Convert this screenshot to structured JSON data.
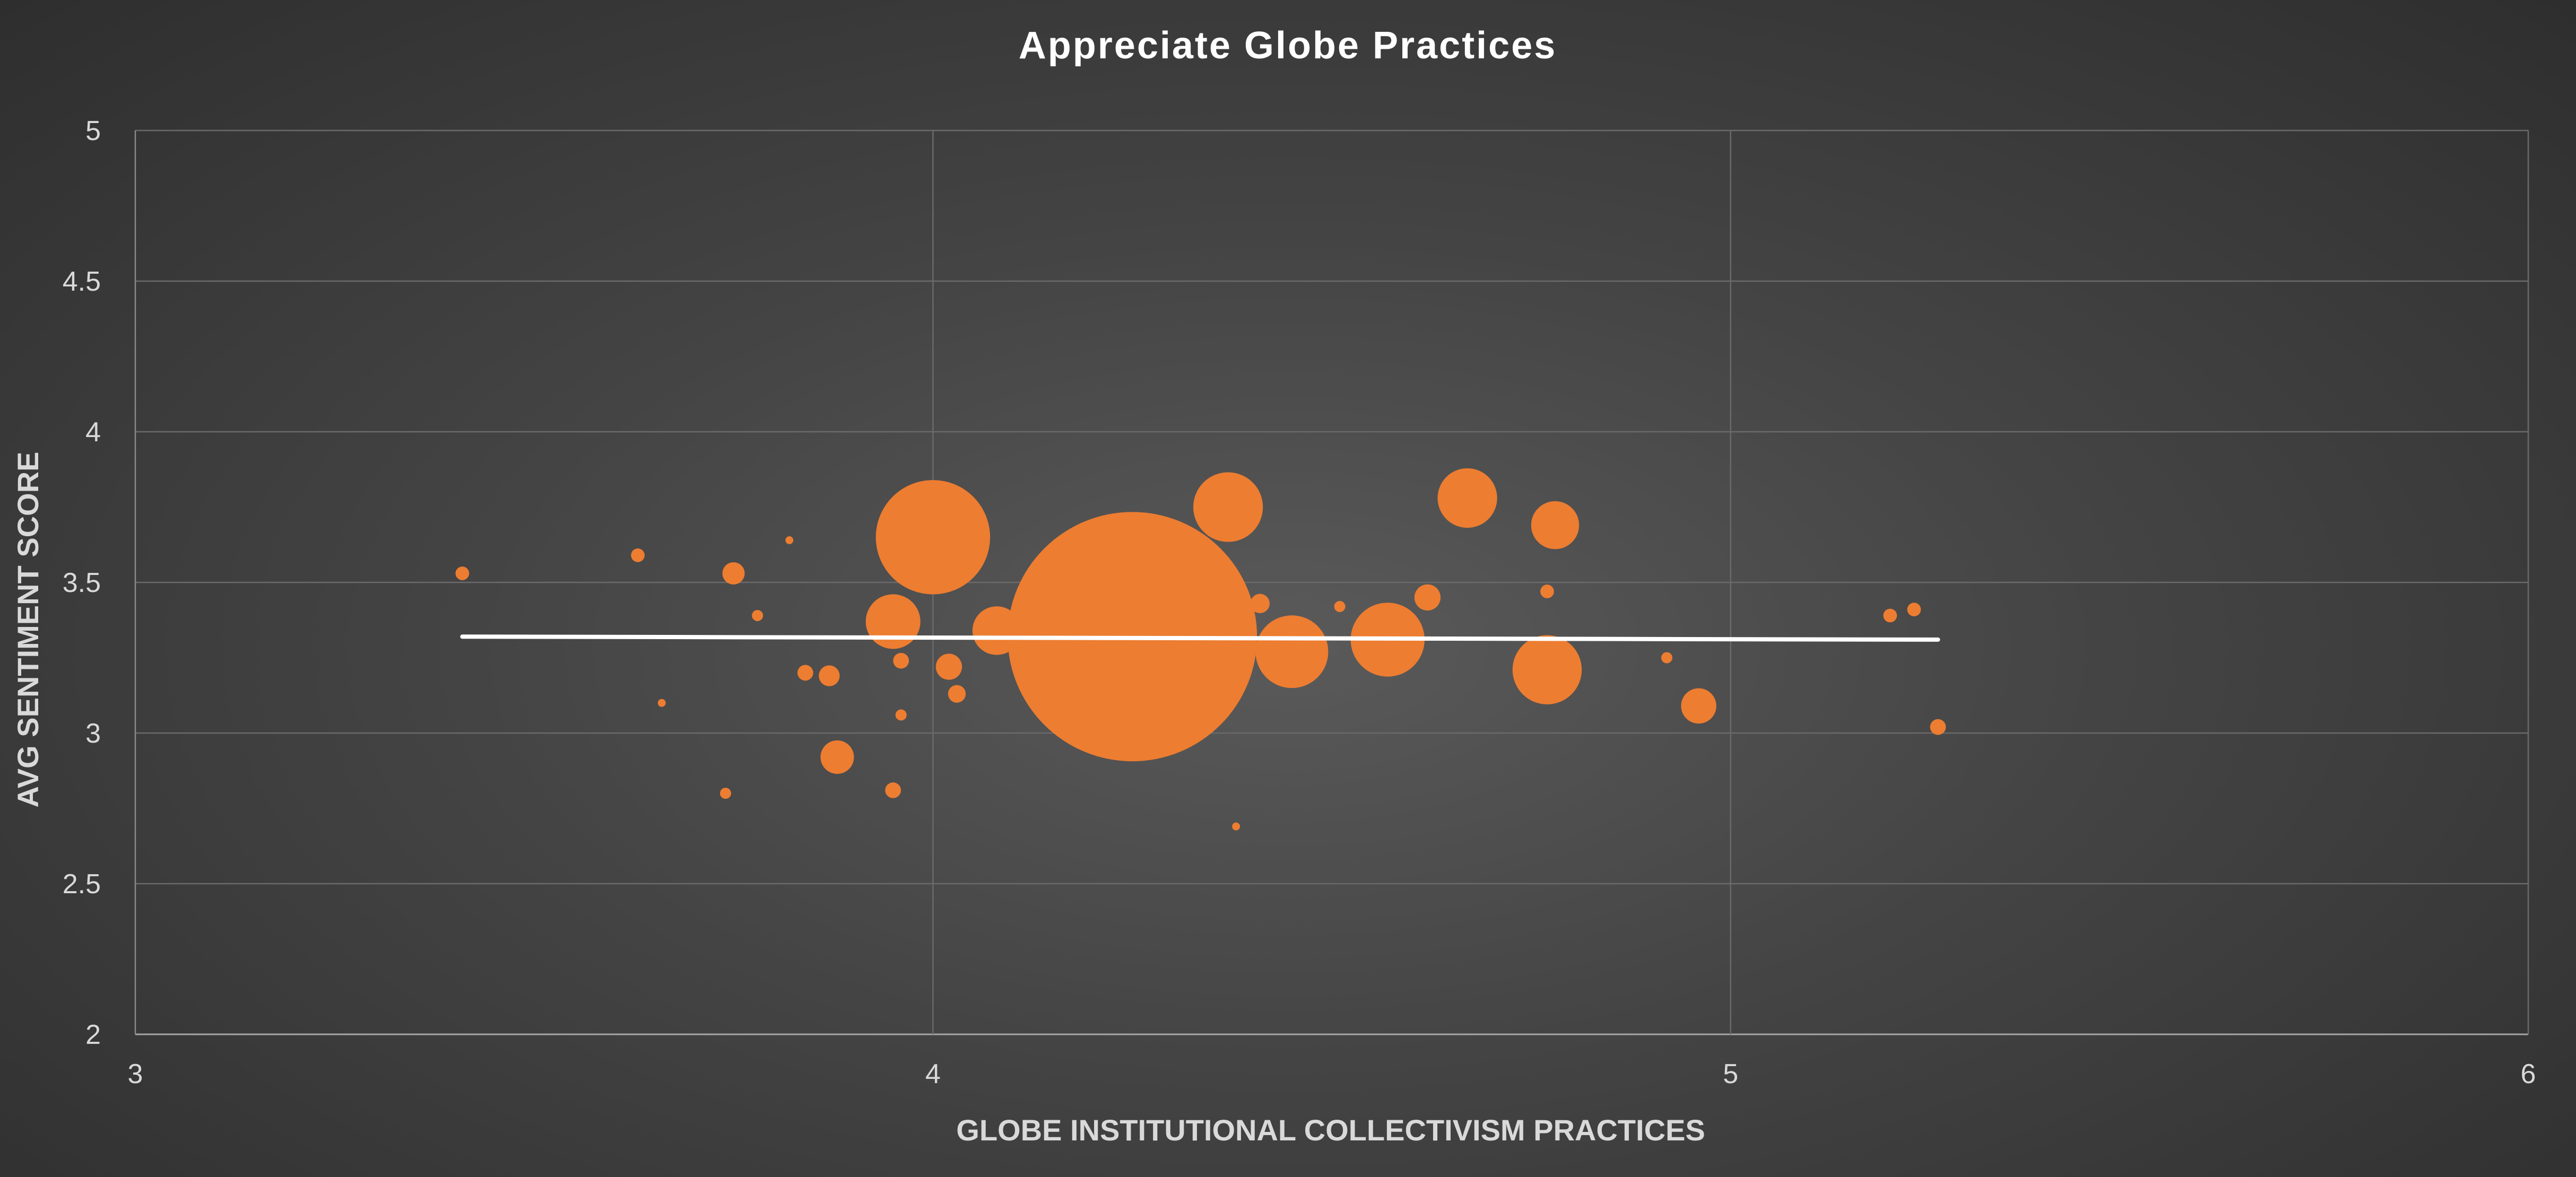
{
  "chart_data": {
    "type": "scatter",
    "subtype": "bubble",
    "title": "Appreciate Globe Practices",
    "xlabel": "GLOBE INSTITUTIONAL COLLECTIVISM PRACTICES",
    "ylabel": "AVG SENTIMENT SCORE",
    "xlim": [
      3,
      6
    ],
    "ylim": [
      2,
      5
    ],
    "xticks": [
      "3",
      "4",
      "5",
      "6"
    ],
    "yticks": [
      "2",
      "2.5",
      "3",
      "3.5",
      "4",
      "4.5",
      "5"
    ],
    "grid": true,
    "bubble_color": "#ED7D31",
    "trendline_color": "#FFFFFF",
    "trendline": {
      "x": [
        3.41,
        5.26
      ],
      "y": [
        3.32,
        3.31
      ]
    },
    "points": [
      {
        "x": 3.41,
        "y": 3.53,
        "size": 3
      },
      {
        "x": 3.63,
        "y": 3.59,
        "size": 3
      },
      {
        "x": 3.66,
        "y": 3.1,
        "size": 1
      },
      {
        "x": 3.74,
        "y": 2.8,
        "size": 2
      },
      {
        "x": 3.75,
        "y": 3.53,
        "size": 8
      },
      {
        "x": 3.78,
        "y": 3.39,
        "size": 2
      },
      {
        "x": 3.82,
        "y": 3.64,
        "size": 1
      },
      {
        "x": 3.84,
        "y": 3.2,
        "size": 4
      },
      {
        "x": 3.87,
        "y": 3.19,
        "size": 7
      },
      {
        "x": 3.88,
        "y": 2.92,
        "size": 18
      },
      {
        "x": 3.95,
        "y": 2.81,
        "size": 4
      },
      {
        "x": 3.95,
        "y": 3.37,
        "size": 48
      },
      {
        "x": 3.96,
        "y": 3.24,
        "size": 4
      },
      {
        "x": 3.96,
        "y": 3.06,
        "size": 2
      },
      {
        "x": 4.0,
        "y": 3.65,
        "size": 210
      },
      {
        "x": 4.02,
        "y": 3.22,
        "size": 11
      },
      {
        "x": 4.03,
        "y": 3.13,
        "size": 5
      },
      {
        "x": 4.08,
        "y": 3.34,
        "size": 38
      },
      {
        "x": 4.25,
        "y": 3.32,
        "size": 1000
      },
      {
        "x": 4.37,
        "y": 3.75,
        "size": 78
      },
      {
        "x": 4.38,
        "y": 2.69,
        "size": 1
      },
      {
        "x": 4.41,
        "y": 3.43,
        "size": 6
      },
      {
        "x": 4.45,
        "y": 3.27,
        "size": 85
      },
      {
        "x": 4.51,
        "y": 3.42,
        "size": 2
      },
      {
        "x": 4.57,
        "y": 3.31,
        "size": 88
      },
      {
        "x": 4.62,
        "y": 3.45,
        "size": 11
      },
      {
        "x": 4.67,
        "y": 3.78,
        "size": 57
      },
      {
        "x": 4.77,
        "y": 3.47,
        "size": 3
      },
      {
        "x": 4.77,
        "y": 3.21,
        "size": 77
      },
      {
        "x": 4.78,
        "y": 3.69,
        "size": 37
      },
      {
        "x": 4.92,
        "y": 3.25,
        "size": 2
      },
      {
        "x": 4.96,
        "y": 3.09,
        "size": 20
      },
      {
        "x": 5.2,
        "y": 3.39,
        "size": 3
      },
      {
        "x": 5.23,
        "y": 3.41,
        "size": 3
      },
      {
        "x": 5.26,
        "y": 3.02,
        "size": 4
      }
    ]
  }
}
